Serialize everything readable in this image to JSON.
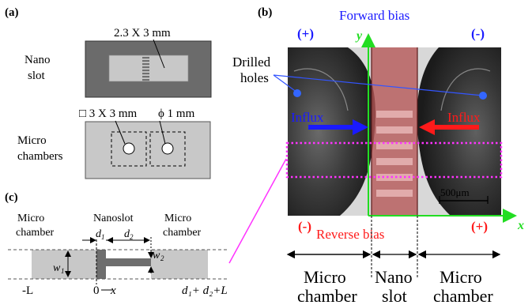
{
  "panel_a": {
    "label": "(a)",
    "nano_slot_label_1": "Nano",
    "nano_slot_label_2": "slot",
    "nano_dims": "2.3 X 3 mm",
    "micro_label_1": "Micro",
    "micro_label_2": "chambers",
    "square_dims": "□ 3 X 3 mm",
    "hole_dims": "ϕ 1 mm"
  },
  "panel_b": {
    "label": "(b)",
    "forward_bias": "Forward bias",
    "reverse_bias": "Reverse bias",
    "y_axis": "y",
    "x_axis": "x",
    "plus_top_left": "(+)",
    "minus_top_right": "(-)",
    "minus_bottom_left": "(-)",
    "plus_bottom_right": "(+)",
    "drilled_holes_1": "Drilled",
    "drilled_holes_2": "holes",
    "influx_left": "Influx",
    "influx_right": "Influx",
    "scale_bar": "500μm",
    "region_micro_left_1": "Micro",
    "region_micro_left_2": "chamber",
    "region_nano_1": "Nano",
    "region_nano_2": "slot",
    "region_micro_right_1": "Micro",
    "region_micro_right_2": "chamber"
  },
  "panel_c": {
    "label": "(c)",
    "micro_left_1": "Micro",
    "micro_left_2": "chamber",
    "nanoslot": "Nanoslot",
    "micro_right_1": "Micro",
    "micro_right_2": "chamber",
    "d1": "d",
    "d1_sub": "1",
    "d2": "d",
    "d2_sub": "2",
    "w1": "w",
    "w1_sub": "1",
    "w2": "w",
    "w2_sub": "2",
    "neg_L": "-L",
    "zero": "0",
    "x": "x",
    "end_label": "d₁+ d₂+L"
  },
  "colors": {
    "blue": "#1a1aff",
    "red": "#ff1a1a",
    "green": "#22dd22",
    "magenta": "#ff33ff",
    "slot_red": "#b03030"
  }
}
